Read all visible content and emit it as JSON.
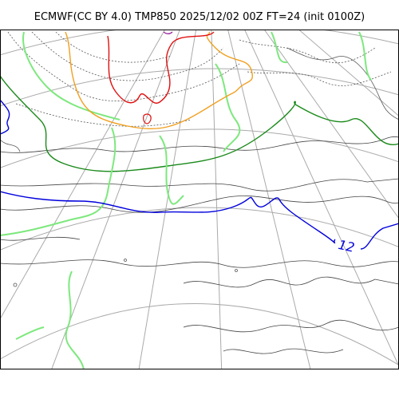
{
  "title": "ECMWF(CC BY 4.0) TMP850 2025/12/02 00Z FT=24 (init 0100Z)",
  "contour_labels": [
    {
      "value": "12",
      "color": "#0000dd"
    }
  ],
  "colors": {
    "coastline": "#555555",
    "graticule": "#aaaaaa",
    "isotherm_minor": "#444444",
    "isotherm_dotted": "#555555",
    "isotherm_green_dark": "#1a8a1a",
    "isotherm_green_light": "#7de87d",
    "isotherm_blue": "#0000dd",
    "isotherm_orange": "#f0a020",
    "isotherm_red": "#e01010",
    "isotherm_purple": "#9a2aa0"
  }
}
